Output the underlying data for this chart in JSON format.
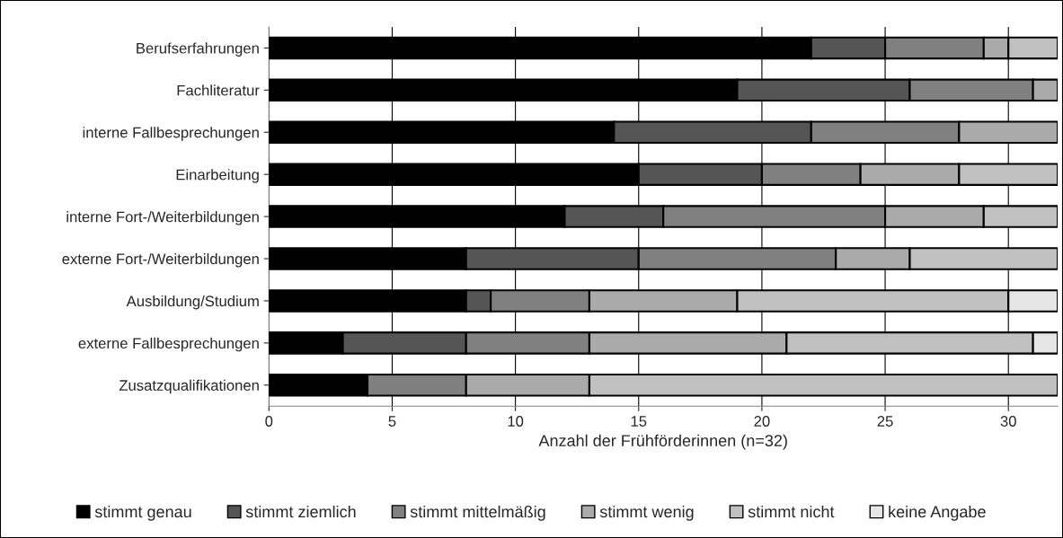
{
  "chart_data": {
    "type": "bar",
    "orientation": "horizontal",
    "stacked": true,
    "categories": [
      "Berufserfahrungen",
      "Fachliteratur",
      "interne Fallbesprechungen",
      "Einarbeitung",
      "interne Fort-/Weiterbildungen",
      "externe Fort-/Weiterbildungen",
      "Ausbildung/Studium",
      "externe Fallbesprechungen",
      "Zusatzqualifikationen"
    ],
    "series": [
      {
        "name": "stimmt genau",
        "color": "#000000",
        "values": [
          22,
          19,
          14,
          15,
          12,
          8,
          8,
          3,
          4
        ]
      },
      {
        "name": "stimmt ziemlich",
        "color": "#555555",
        "values": [
          3,
          7,
          8,
          5,
          4,
          7,
          1,
          5,
          0
        ]
      },
      {
        "name": "stimmt mittelmäßig",
        "color": "#808080",
        "values": [
          4,
          5,
          6,
          4,
          9,
          8,
          4,
          5,
          4
        ]
      },
      {
        "name": "stimmt wenig",
        "color": "#aaaaaa",
        "values": [
          1,
          1,
          4,
          4,
          4,
          3,
          6,
          8,
          5
        ]
      },
      {
        "name": "stimmt nicht",
        "color": "#c0c0c0",
        "values": [
          2,
          0,
          0,
          4,
          3,
          6,
          11,
          10,
          19
        ]
      },
      {
        "name": "keine Angabe",
        "color": "#e6e6e6",
        "values": [
          0,
          0,
          0,
          0,
          0,
          0,
          2,
          1,
          0
        ]
      }
    ],
    "xlabel": "Anzahl der Frühförderinnen (n=32)",
    "xlim": [
      0,
      32
    ],
    "xticks": [
      0,
      5,
      10,
      15,
      20,
      25,
      30
    ],
    "grid": "x",
    "legend": "bottom"
  }
}
